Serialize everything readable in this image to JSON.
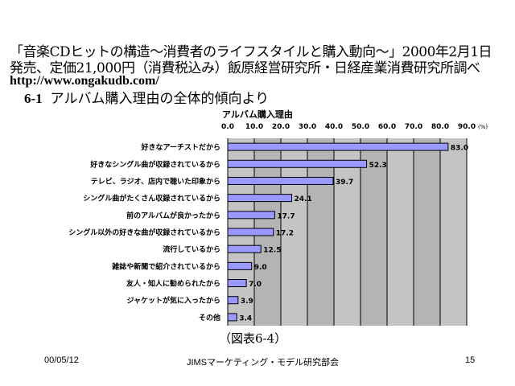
{
  "header": {
    "line1": "「音楽CDヒットの構造～消費者のライフスタイルと購入動向～」2000年2月1日",
    "line2": "発売、定価21,000円（消費税込み）飯原経営研究所・日経産業消費研究所調べ",
    "url": "http://www.ongakudb.com/",
    "section_number": "6-1",
    "section_title": "アルバム購入理由の全体的傾向より"
  },
  "chart_data": {
    "type": "bar",
    "orientation": "horizontal",
    "title": "アルバム購入理由",
    "unit_label": "(%)",
    "xlim": [
      0,
      90
    ],
    "ticks": [
      "0.0",
      "10.0",
      "20.0",
      "30.0",
      "40.0",
      "50.0",
      "60.0",
      "70.0",
      "80.0",
      "90.0"
    ],
    "categories": [
      "好きなアーチストだから",
      "好きなシングル曲が収録されているから",
      "テレビ、ラジオ、店内で聴いた印象から",
      "シングル曲がたくさん収録されているから",
      "前のアルバムが良かったから",
      "シングル以外の好きな曲が収録されているから",
      "流行しているから",
      "雑誌や新聞で紹介されているから",
      "友人・知人に勧められたから",
      "ジャケットが気に入ったから",
      "その他"
    ],
    "values": [
      83.0,
      52.3,
      39.7,
      24.1,
      17.7,
      17.2,
      12.5,
      9.0,
      7.0,
      3.9,
      3.4
    ],
    "bar_color": "#9999ff"
  },
  "caption": "（図表6-4）",
  "footer": {
    "date": "00/05/12",
    "org": "JIMSマーケティング・モデル研究部会",
    "page": "15"
  }
}
